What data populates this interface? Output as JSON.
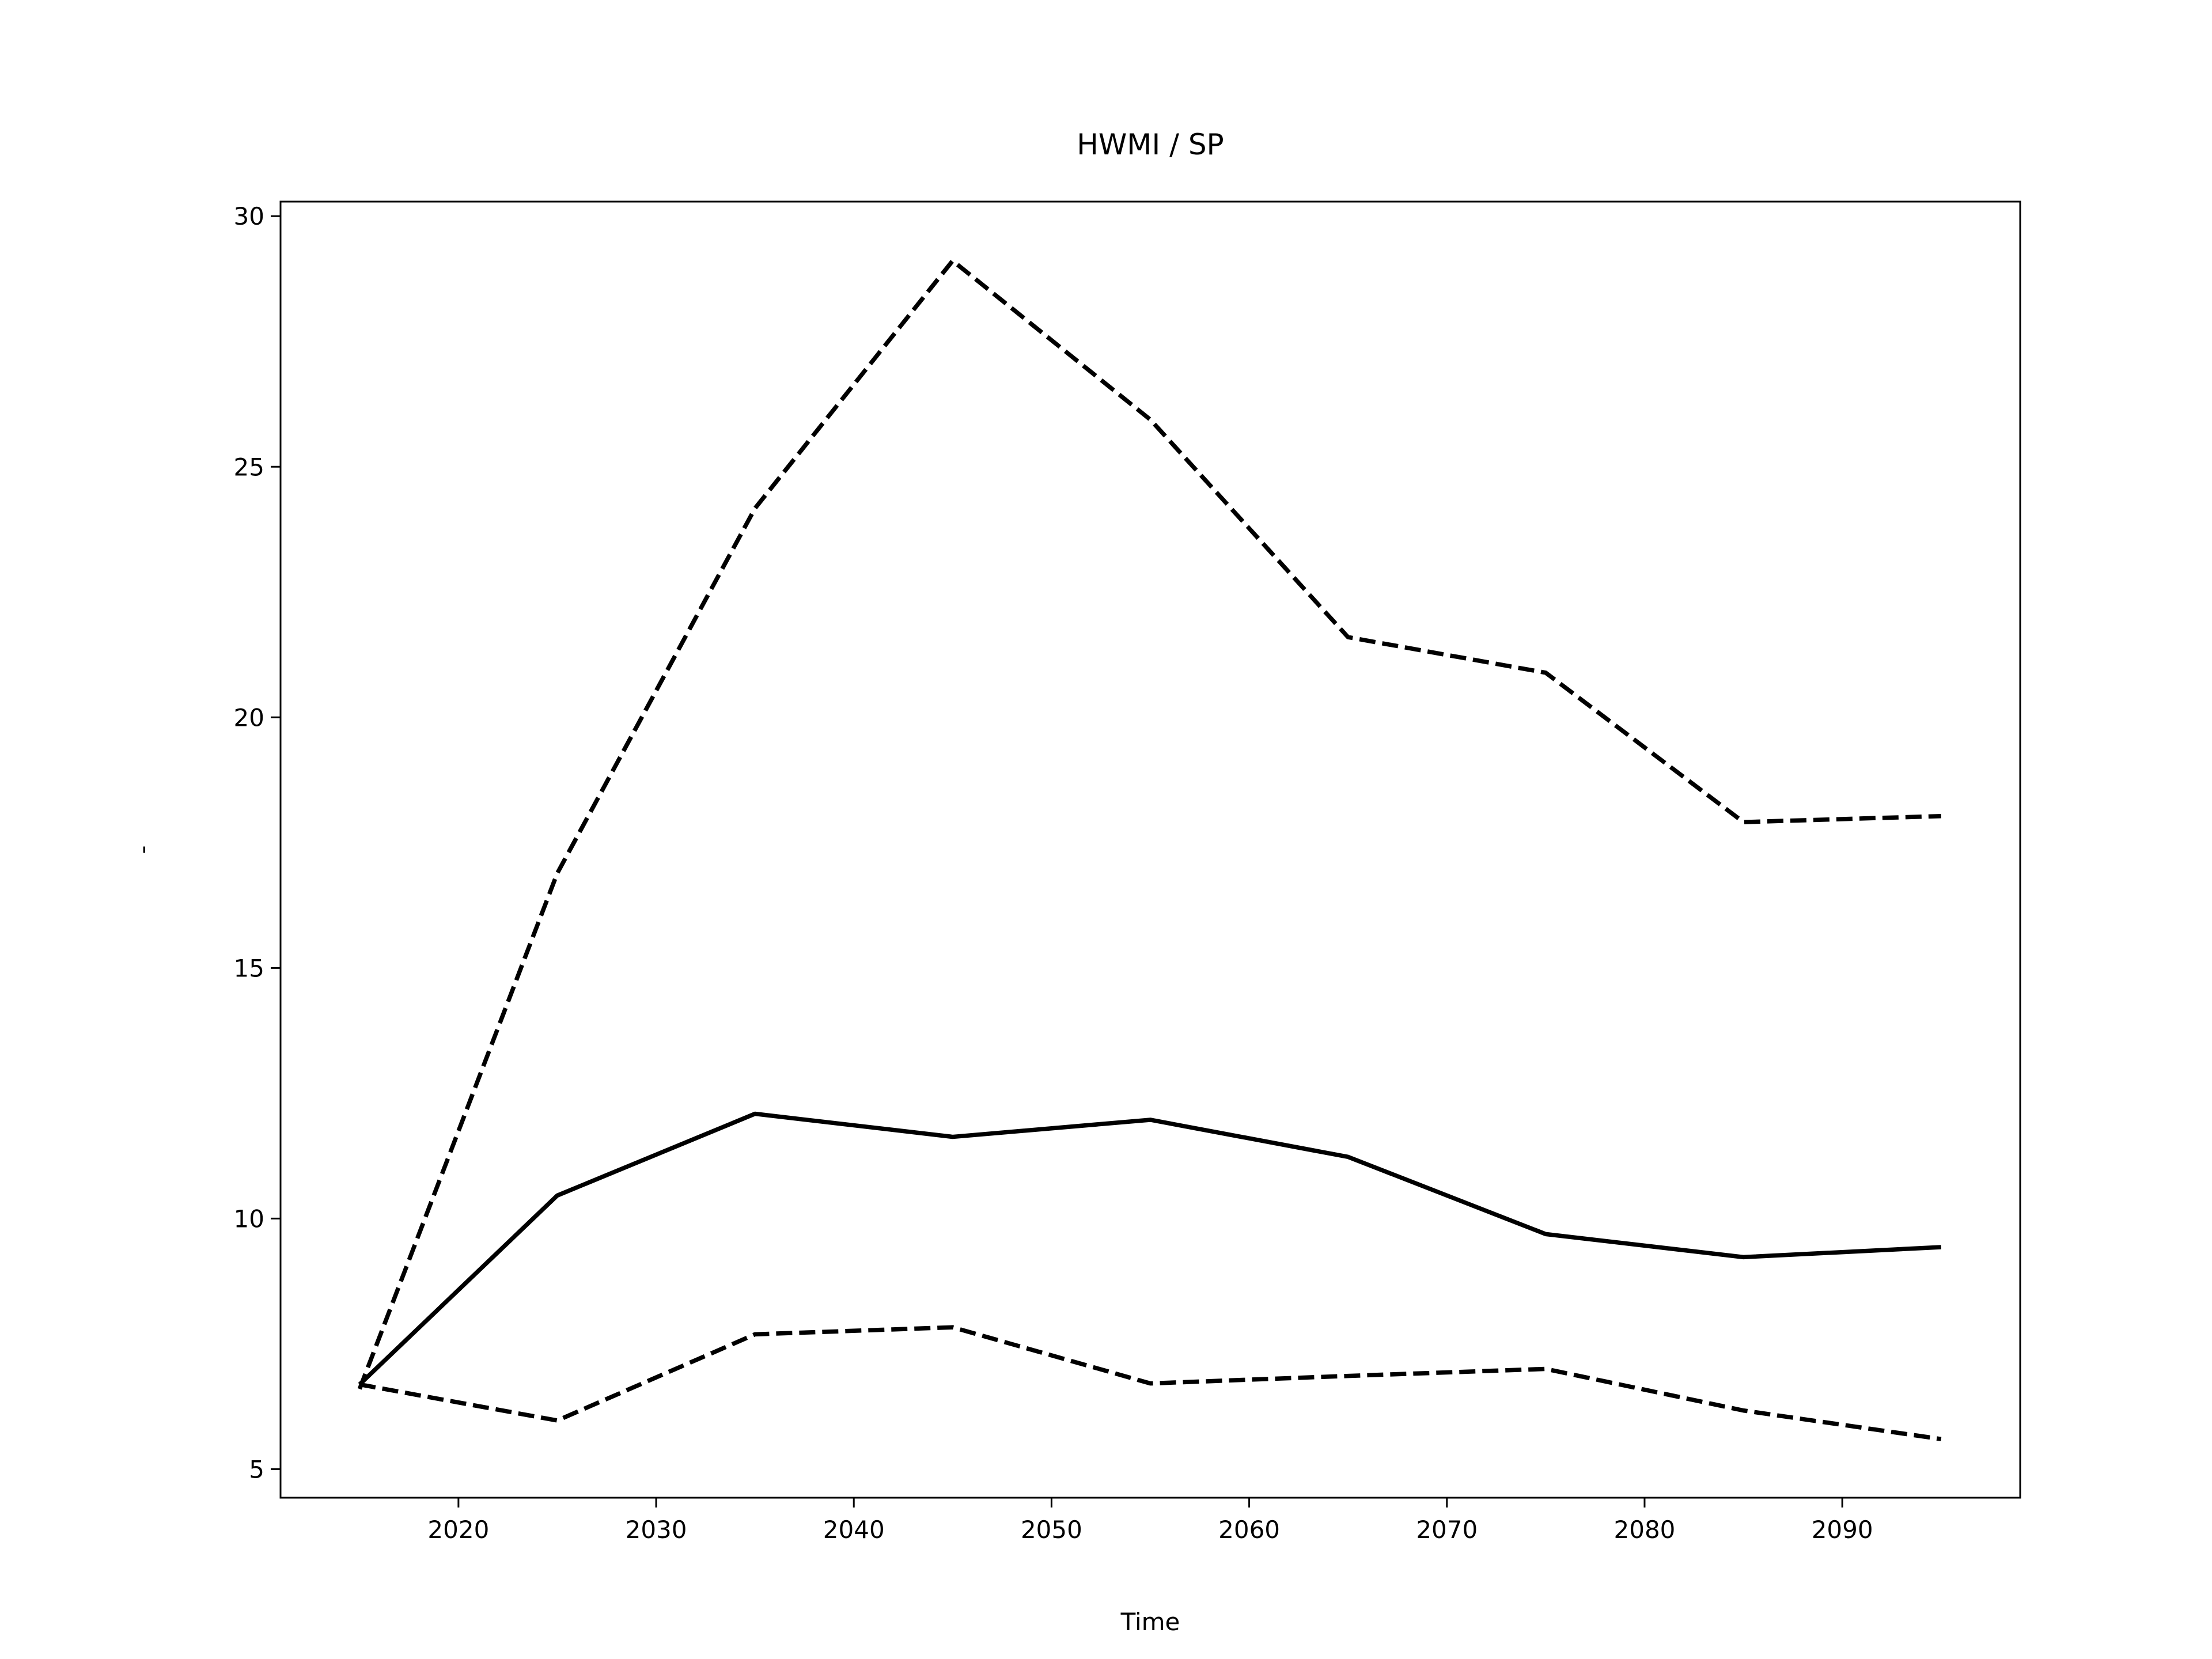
{
  "chart_data": {
    "type": "line",
    "title": "HWMI / SP",
    "xlabel": "Time",
    "ylabel": "-",
    "x": [
      2015,
      2025,
      2035,
      2045,
      2055,
      2065,
      2075,
      2085,
      2095
    ],
    "series": [
      {
        "color": "#000000",
        "linestyle": "dashed",
        "values": [
          6.6,
          16.89,
          24.17,
          29.11,
          25.94,
          21.6,
          20.89,
          17.91,
          18.03
        ]
      },
      {
        "color": "#000000",
        "linestyle": "solid",
        "values": [
          6.69,
          10.46,
          12.09,
          11.63,
          11.97,
          11.23,
          9.69,
          9.23,
          9.43
        ]
      },
      {
        "color": "#000000",
        "linestyle": "dashed",
        "values": [
          6.69,
          5.97,
          7.69,
          7.83,
          6.71,
          6.86,
          7.0,
          6.17,
          5.6
        ]
      }
    ],
    "xlim": [
      2011,
      2099
    ],
    "xticks": [
      2020,
      2030,
      2040,
      2050,
      2060,
      2070,
      2080,
      2090
    ],
    "ylim": [
      4.43,
      30.29
    ],
    "yticks": [
      5,
      10,
      15,
      20,
      25,
      30
    ],
    "grid": false
  }
}
